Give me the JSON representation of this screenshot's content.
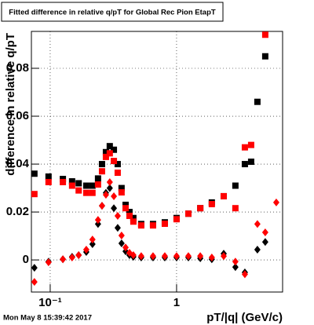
{
  "chart_data": {
    "type": "scatter",
    "title": "Fitted difference in relative q/pT for Global Rec Pion EtapT",
    "x_label": "pT/|q| (GeV/c)",
    "y_label": "difference in relative q/pT",
    "timestamp": "Mon May  8 15:39:42 2017",
    "log_x": true,
    "grid": true,
    "xlim": [
      0.071,
      6.9
    ],
    "ylim": [
      -0.0134,
      0.0954
    ],
    "xticks": [
      {
        "value": 0.1,
        "label": "10⁻¹"
      },
      1
    ],
    "yticks": [
      0,
      0.02,
      0.04,
      0.06,
      0.08
    ],
    "x": [
      0.075,
      0.097,
      0.126,
      0.149,
      0.168,
      0.193,
      0.216,
      0.239,
      0.257,
      0.276,
      0.296,
      0.319,
      0.342,
      0.367,
      0.395,
      0.424,
      0.455,
      0.525,
      0.651,
      0.807,
      1.0,
      1.24,
      1.54,
      1.9,
      2.36,
      2.92,
      3.47,
      3.89,
      4.36,
      5.03,
      6.15
    ],
    "series": [
      {
        "name": "black squares",
        "color": "#000000",
        "marker": "square",
        "values": [
          0.036,
          0.0348,
          0.0338,
          0.0328,
          0.032,
          0.031,
          0.031,
          0.034,
          0.04,
          0.045,
          0.0475,
          0.046,
          0.04,
          0.03,
          0.023,
          0.02,
          0.0175,
          0.015,
          0.015,
          0.0157,
          0.0175,
          0.0193,
          0.0216,
          0.024,
          0.0266,
          0.031,
          0.04,
          0.041,
          0.066,
          0.085,
          null
        ]
      },
      {
        "name": "red squares",
        "color": "#ff0000",
        "marker": "square",
        "values": [
          0.0275,
          0.0325,
          0.0325,
          0.031,
          0.029,
          0.028,
          0.028,
          0.0315,
          0.037,
          0.043,
          0.0445,
          0.0413,
          0.0364,
          0.0282,
          0.0216,
          0.0184,
          0.016,
          0.0144,
          0.0144,
          0.0151,
          0.017,
          0.0193,
          0.0216,
          0.0233,
          0.0266,
          0.0216,
          0.047,
          0.048,
          null,
          0.094,
          null
        ]
      },
      {
        "name": "black diamonds",
        "color": "#000000",
        "marker": "diamond",
        "values": [
          -0.0033,
          -0.0007,
          0.0003,
          0.0013,
          0.002,
          0.0033,
          0.0066,
          0.015,
          0.0226,
          0.028,
          0.03,
          0.0216,
          0.0134,
          0.0069,
          0.0036,
          0.002,
          0.0013,
          0.001,
          0.001,
          0.001,
          0.001,
          0.001,
          0.0007,
          0.0003,
          0.0026,
          -0.003,
          -0.0052,
          null,
          0.0043,
          0.0075,
          null
        ]
      },
      {
        "name": "red diamonds",
        "color": "#ff0000",
        "marker": "diamond",
        "values": [
          -0.0092,
          -0.001,
          0.0003,
          0.001,
          0.002,
          0.0043,
          0.0085,
          0.0167,
          0.0226,
          0.0272,
          0.0325,
          0.0266,
          0.0184,
          0.0102,
          0.0052,
          0.003,
          0.002,
          0.0016,
          0.0016,
          0.0016,
          0.0016,
          0.0016,
          0.0016,
          0.001,
          0.0016,
          -0.0007,
          -0.006,
          null,
          0.015,
          0.0115,
          0.024
        ]
      }
    ]
  }
}
